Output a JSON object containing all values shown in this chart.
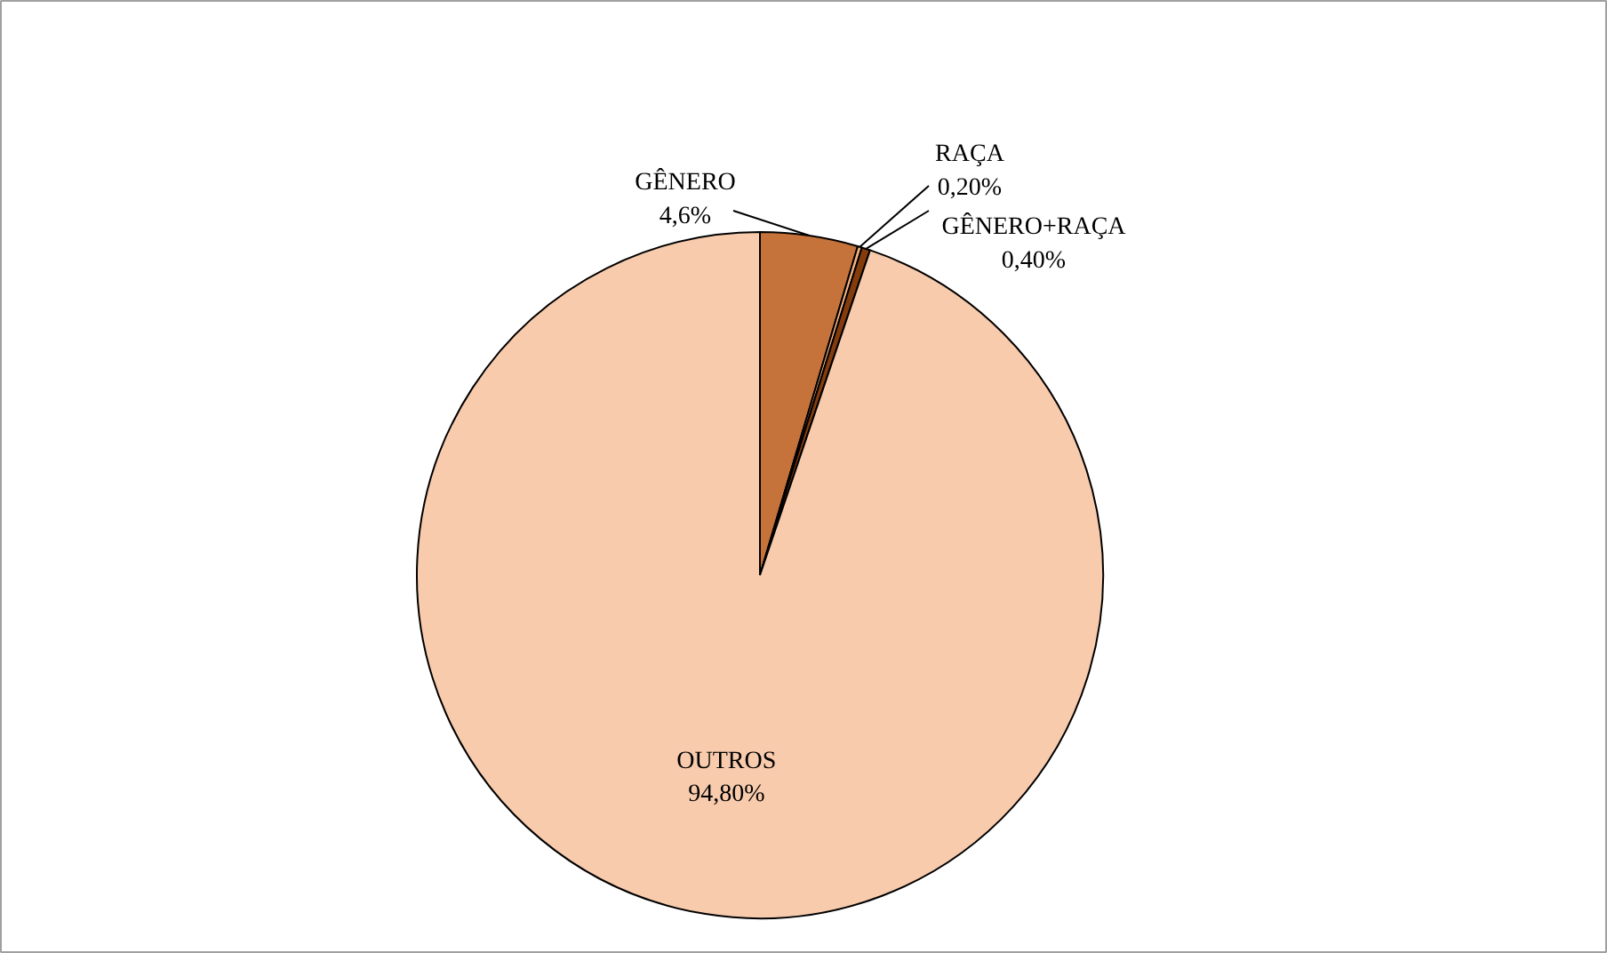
{
  "chart_data": {
    "type": "pie",
    "categories": [
      "GÊNERO",
      "RAÇA",
      "GÊNERO+RAÇA",
      "OUTROS"
    ],
    "values": [
      4.6,
      0.2,
      0.4,
      94.8
    ],
    "value_labels": [
      "4,6%",
      "0,20%",
      "0,40%",
      "94,80%"
    ],
    "colors": [
      "#c5733a",
      "#f4b183",
      "#843c0c",
      "#f8cbad"
    ]
  }
}
